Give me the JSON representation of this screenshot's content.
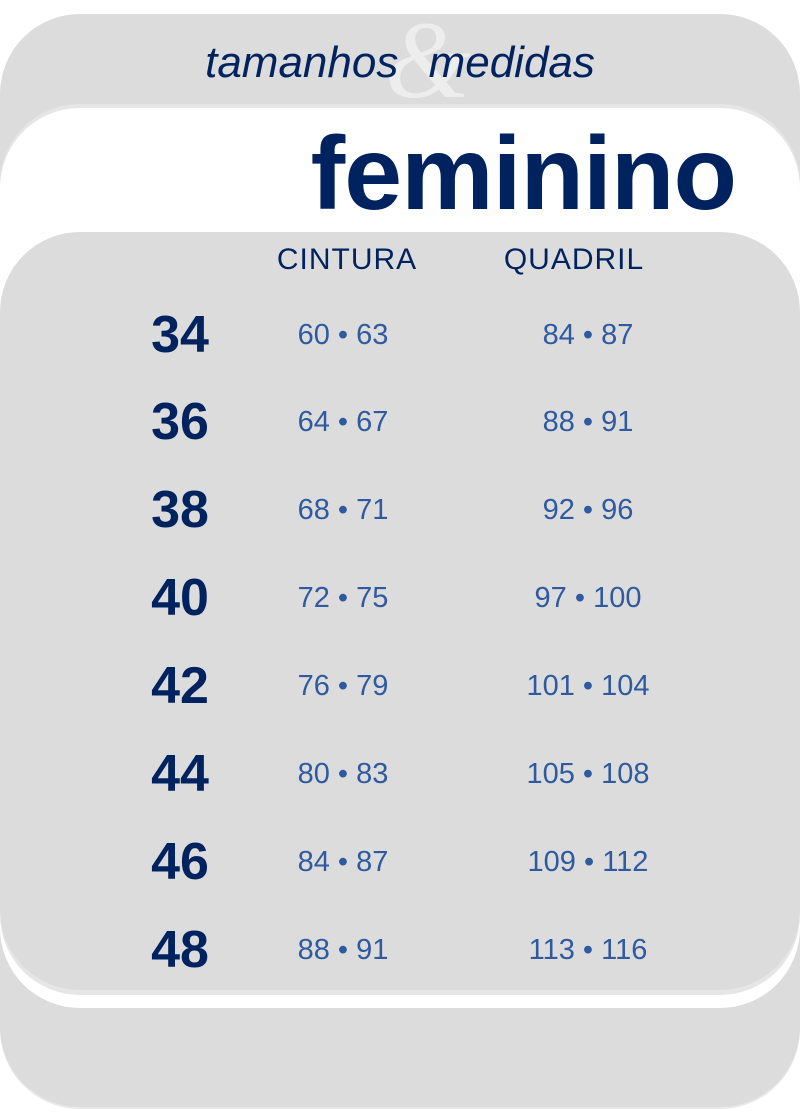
{
  "header": {
    "subtitle_left": "tamanhos",
    "ampersand": "&",
    "subtitle_right": "medidas",
    "title": "feminino"
  },
  "columns": {
    "waist": "CINTURA",
    "hip": "QUADRIL"
  },
  "rows": [
    {
      "size": "34",
      "waist": "60 • 63",
      "hip": "84 • 87"
    },
    {
      "size": "36",
      "waist": "64 • 67",
      "hip": "88 • 91"
    },
    {
      "size": "38",
      "waist": "68 • 71",
      "hip": "92 • 96"
    },
    {
      "size": "40",
      "waist": "72 • 75",
      "hip": "97 • 100"
    },
    {
      "size": "42",
      "waist": "76 • 79",
      "hip": "101 • 104"
    },
    {
      "size": "44",
      "waist": "80 • 83",
      "hip": "105 • 108"
    },
    {
      "size": "46",
      "waist": "84 • 87",
      "hip": "109 • 112"
    },
    {
      "size": "48",
      "waist": "88 • 91",
      "hip": "113 • 116"
    }
  ],
  "colors": {
    "navy": "#00235f",
    "value_blue": "#2f5aa0",
    "panel_gray": "#dcdcdc"
  }
}
